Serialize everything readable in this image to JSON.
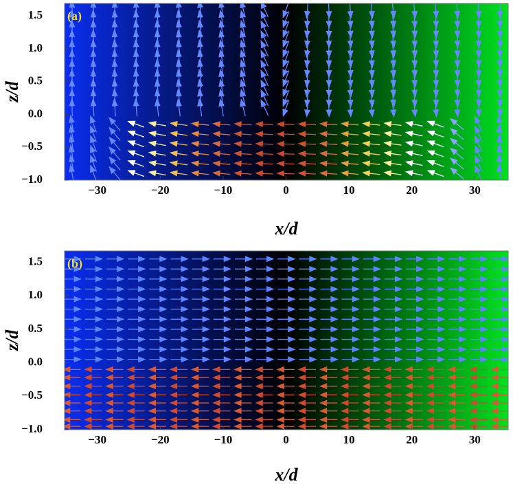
{
  "chart_data": [
    {
      "type": "quiver",
      "label": "(a)",
      "xlabel": "x/d",
      "ylabel": "z/d",
      "xlim": [
        -35.2,
        35.3
      ],
      "ylim": [
        -1,
        1.69
      ],
      "xticks": [
        {
          "value": -30,
          "label": "−30"
        },
        {
          "value": -20,
          "label": "−20"
        },
        {
          "value": -10,
          "label": "−10"
        },
        0,
        10,
        20,
        30
      ],
      "yticks": [
        {
          "value": -1,
          "label": "−1.0"
        },
        {
          "value": -0.5,
          "label": "−0.5"
        },
        {
          "value": 0,
          "label": "0.0"
        },
        0.5,
        {
          "value": 1,
          "label": "1.0"
        },
        1.5
      ],
      "background": [
        "#0a2ef0",
        "#000000",
        "#00e020"
      ],
      "x": [
        -34,
        -30.6,
        -27.2,
        -23.8,
        -20.4,
        -17,
        -13.6,
        -10.2,
        -6.8,
        -3.4,
        0,
        3.4,
        6.8,
        10.2,
        13.6,
        17,
        20.4,
        23.8,
        27.2,
        30.6,
        34
      ],
      "fields": [
        {
          "z": [
            1.6,
            1.45,
            1.3,
            1.15,
            1.0,
            0.85,
            0.7,
            0.55,
            0.4,
            0.25,
            0.1
          ],
          "angles": [
            92,
            93,
            94,
            95,
            96,
            97,
            98,
            100,
            104,
            115,
            -110,
            -95,
            -88,
            -86,
            -85,
            -84,
            -85,
            -86,
            -87,
            -88,
            -89
          ],
          "colors": [
            "#6688ff",
            "#6688ff",
            "#6688ff",
            "#6688ff",
            "#6688ff",
            "#6688ff",
            "#6688ff",
            "#6688ff",
            "#6688ff",
            "#6688ff",
            "#6688ff",
            "#6688ff",
            "#6688ff",
            "#6688ff",
            "#6688ff",
            "#6688ff",
            "#6688ff",
            "#6688ff",
            "#6688ff",
            "#6688ff",
            "#6688ff"
          ]
        },
        {
          "z": [
            -0.15,
            -0.3,
            -0.45,
            -0.6,
            -0.75,
            -0.9
          ],
          "angles": [
            100,
            110,
            130,
            160,
            170,
            172,
            174,
            175,
            176,
            177,
            178,
            177,
            176,
            175,
            174,
            172,
            168,
            160,
            140,
            115,
            100
          ],
          "colors": [
            "#6688ff",
            "#6688ff",
            "#6688ff",
            "#ffffff",
            "#f5f0a0",
            "#f0c050",
            "#e08a45",
            "#d86a40",
            "#cc5535",
            "#c84a30",
            "#c84a30",
            "#cc5535",
            "#d86a40",
            "#e0a045",
            "#f0d060",
            "#fff0a0",
            "#ffffff",
            "#ffffff",
            "#8aa4ff",
            "#6688ff",
            "#6688ff"
          ]
        }
      ]
    },
    {
      "type": "quiver",
      "label": "(b)",
      "xlabel": "x/d",
      "ylabel": "z/d",
      "xlim": [
        -35.2,
        35.3
      ],
      "ylim": [
        -1,
        1.67
      ],
      "xticks": [
        {
          "value": -30,
          "label": "−30"
        },
        {
          "value": -20,
          "label": "−20"
        },
        {
          "value": -10,
          "label": "−10"
        },
        0,
        10,
        20,
        30
      ],
      "yticks": [
        {
          "value": -1,
          "label": "−1.0"
        },
        {
          "value": -0.5,
          "label": "−0.5"
        },
        {
          "value": 0,
          "label": "0.0"
        },
        0.5,
        {
          "value": 1,
          "label": "1.0"
        },
        1.5
      ],
      "background": [
        "#0a2ef0",
        "#000000",
        "#00e020"
      ],
      "x": [
        -34,
        -30.6,
        -27.2,
        -23.8,
        -20.4,
        -17,
        -13.6,
        -10.2,
        -6.8,
        -3.4,
        0,
        3.4,
        6.8,
        10.2,
        13.6,
        17,
        20.4,
        23.8,
        27.2,
        30.6,
        34
      ],
      "fields": [
        {
          "z": [
            1.55,
            1.4,
            1.25,
            1.1,
            0.95,
            0.8,
            0.65,
            0.5,
            0.35,
            0.2,
            0.05
          ],
          "angles": [
            0,
            0,
            0,
            0,
            0,
            0,
            0,
            0,
            0,
            0,
            0,
            0,
            0,
            0,
            0,
            0,
            0,
            0,
            0,
            0,
            0
          ],
          "colors": [
            "#5f84ff",
            "#5f84ff",
            "#5f84ff",
            "#5f84ff",
            "#5f84ff",
            "#5f84ff",
            "#5f84ff",
            "#5f84ff",
            "#5f84ff",
            "#5f84ff",
            "#5f84ff",
            "#5f84ff",
            "#5f84ff",
            "#5f84ff",
            "#5f84ff",
            "#5f84ff",
            "#5f84ff",
            "#5f84ff",
            "#5f84ff",
            "#5f84ff",
            "#5f84ff"
          ]
        },
        {
          "z": [
            -0.1,
            -0.22,
            -0.35,
            -0.48,
            -0.6,
            -0.72,
            -0.85,
            -0.95
          ],
          "angles": [
            180,
            180,
            180,
            180,
            180,
            180,
            180,
            180,
            180,
            180,
            180,
            180,
            180,
            180,
            180,
            180,
            180,
            180,
            180,
            180,
            180
          ],
          "colors": [
            "#d85a35",
            "#d04a30",
            "#d85a35",
            "#d04a30",
            "#d85a35",
            "#d04a30",
            "#d85a35",
            "#d04a30",
            "#d85a35",
            "#d04a30",
            "#d85a35",
            "#d04a30",
            "#d85a35",
            "#d04a30",
            "#d85a35",
            "#d04a30",
            "#d85a35",
            "#d04a30",
            "#d85a35",
            "#d04a30",
            "#d85a35"
          ]
        }
      ]
    }
  ]
}
